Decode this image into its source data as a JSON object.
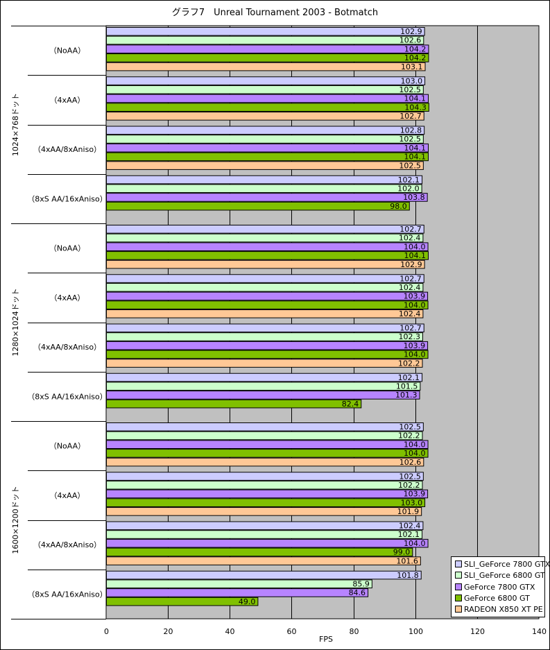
{
  "chart_data": {
    "type": "bar",
    "orientation": "horizontal",
    "title": "グラフ7　Unreal Tournament 2003 - Botmatch",
    "xlabel": "FPS",
    "xlim": [
      0,
      140
    ],
    "xticks": [
      0,
      20,
      40,
      60,
      80,
      100,
      120,
      140
    ],
    "grid": true,
    "legend_position": "bottom-right",
    "series": [
      {
        "name": "SLI_GeForce 7800 GTX",
        "color": "#ccccff"
      },
      {
        "name": "SLI_GeForce 6800 GT",
        "color": "#ccffcc"
      },
      {
        "name": "GeForce 7800 GTX",
        "color": "#b784ff"
      },
      {
        "name": "GeForce 6800 GT",
        "color": "#80c000"
      },
      {
        "name": "RADEON X850 XT PE",
        "color": "#ffc896"
      }
    ],
    "groups": [
      {
        "label": "1024×768ドット",
        "categories": [
          {
            "label": "（NoAA）",
            "values": [
              102.9,
              102.6,
              104.2,
              104.2,
              103.1
            ]
          },
          {
            "label": "（4xAA）",
            "values": [
              103.0,
              102.5,
              104.1,
              104.3,
              102.7
            ]
          },
          {
            "label": "（4xAA/8xAniso）",
            "values": [
              102.8,
              102.5,
              104.1,
              104.1,
              102.5
            ]
          },
          {
            "label": "（8xS AA/16xAniso）",
            "values": [
              102.1,
              102.0,
              103.8,
              98.0,
              null
            ]
          }
        ]
      },
      {
        "label": "1280×1024ドット",
        "categories": [
          {
            "label": "（NoAA）",
            "values": [
              102.7,
              102.4,
              104.0,
              104.1,
              102.9
            ]
          },
          {
            "label": "（4xAA）",
            "values": [
              102.7,
              102.4,
              103.9,
              104.0,
              102.4
            ]
          },
          {
            "label": "（4xAA/8xAniso）",
            "values": [
              102.7,
              102.3,
              103.9,
              104.0,
              102.2
            ]
          },
          {
            "label": "（8xS AA/16xAniso）",
            "values": [
              102.1,
              101.5,
              101.3,
              82.4,
              null
            ]
          }
        ]
      },
      {
        "label": "1600×1200ドット",
        "categories": [
          {
            "label": "（NoAA）",
            "values": [
              102.5,
              102.2,
              104.0,
              104.0,
              102.6
            ]
          },
          {
            "label": "（4xAA）",
            "values": [
              102.5,
              102.2,
              103.9,
              103.0,
              101.9
            ]
          },
          {
            "label": "（4xAA/8xAniso）",
            "values": [
              102.4,
              102.1,
              104.0,
              99.0,
              101.6
            ]
          },
          {
            "label": "（8xS AA/16xAniso）",
            "values": [
              101.8,
              85.9,
              84.6,
              49.0,
              null
            ]
          }
        ]
      }
    ]
  }
}
